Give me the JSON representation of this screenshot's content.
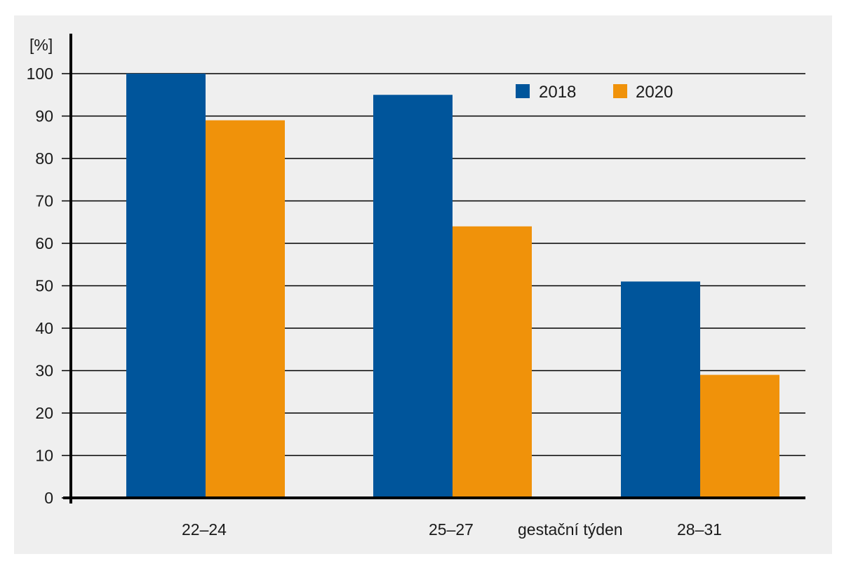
{
  "chart_data": {
    "type": "bar",
    "ylabel": "[%]",
    "xlabel": "gestační týden",
    "categories": [
      "22–24",
      "25–27",
      "28–31"
    ],
    "series": [
      {
        "name": "2018",
        "values": [
          100,
          95,
          51
        ],
        "color": "#00559b"
      },
      {
        "name": "2020",
        "values": [
          89,
          64,
          29
        ],
        "color": "#f0920a"
      }
    ],
    "ylim": [
      0,
      100
    ],
    "yticks": [
      0,
      10,
      20,
      30,
      40,
      50,
      60,
      70,
      80,
      90,
      100
    ],
    "grid": true,
    "legend": "top-right"
  }
}
